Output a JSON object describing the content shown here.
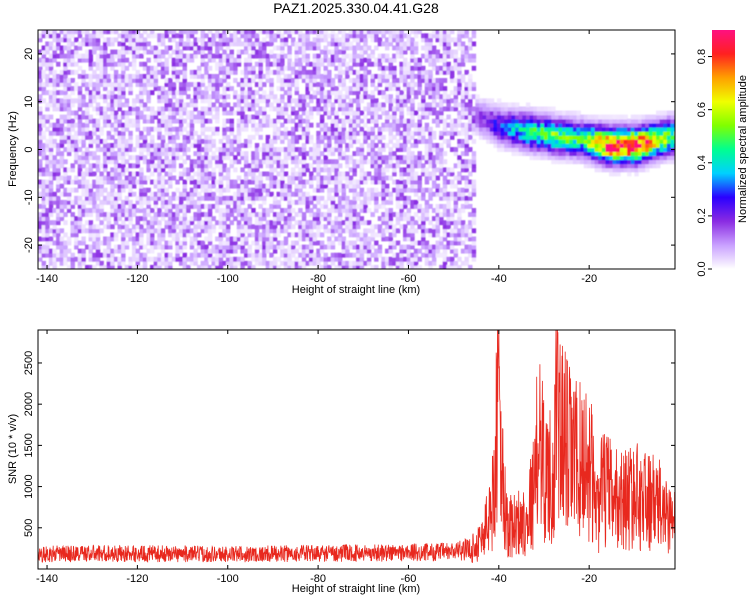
{
  "chart_data": [
    {
      "type": "heatmap",
      "title": "PAZ1.2025.330.04.41.G28",
      "xlabel": "Height of straight line (km)",
      "ylabel": "Frequency (Hz)",
      "xlim": [
        -142,
        -1
      ],
      "ylim": [
        -25,
        25
      ],
      "xticks": [
        -140,
        -120,
        -100,
        -80,
        -60,
        -40,
        -20
      ],
      "yticks": [
        -20,
        -10,
        0,
        10,
        20
      ],
      "colorbar": {
        "label": "Normalized spectral amplitude",
        "range": [
          0,
          0.9
        ],
        "ticks": [
          0.0,
          0.2,
          0.4,
          0.6,
          0.8
        ],
        "colormap": "purple-blue-cyan-green-yellow-red-pink"
      },
      "noise_region": {
        "x_range": [
          -142,
          -46
        ],
        "freq_range": [
          -25,
          25
        ],
        "amplitude_range": [
          0.02,
          0.12
        ]
      },
      "signal_ridge": {
        "points": [
          {
            "x": -46,
            "freq": 7,
            "amp": 0.12
          },
          {
            "x": -40,
            "freq": 4.5,
            "amp": 0.28
          },
          {
            "x": -34,
            "freq": 3.5,
            "amp": 0.45
          },
          {
            "x": -28,
            "freq": 2.5,
            "amp": 0.5
          },
          {
            "x": -22,
            "freq": 1.8,
            "amp": 0.45
          },
          {
            "x": -16,
            "freq": 0.5,
            "amp": 0.85
          },
          {
            "x": -10,
            "freq": 0.5,
            "amp": 0.9
          },
          {
            "x": -4,
            "freq": 2,
            "amp": 0.55
          },
          {
            "x": -1,
            "freq": 2.5,
            "amp": 0.5
          }
        ]
      }
    },
    {
      "type": "line",
      "xlabel": "Height of straight line (km)",
      "ylabel": "SNR (10 * v/v)",
      "xlim": [
        -142,
        -1
      ],
      "ylim": [
        0,
        2900
      ],
      "xticks": [
        -140,
        -120,
        -100,
        -80,
        -60,
        -40,
        -20
      ],
      "yticks": [
        500,
        1000,
        1500,
        2000,
        2500
      ],
      "line_color": "#e8281e",
      "series": [
        {
          "name": "SNR",
          "x": [
            -142,
            -130,
            -120,
            -110,
            -100,
            -90,
            -80,
            -70,
            -60,
            -50,
            -46,
            -44,
            -42,
            -41,
            -40,
            -39.5,
            -38,
            -36,
            -34,
            -32,
            -31,
            -30,
            -28,
            -27,
            -26,
            -24,
            -22,
            -20,
            -18,
            -17,
            -14,
            -12,
            -10,
            -8,
            -6,
            -4,
            -2,
            -1
          ],
          "y": [
            180,
            190,
            185,
            185,
            180,
            185,
            190,
            195,
            200,
            210,
            250,
            350,
            650,
            950,
            2850,
            1200,
            500,
            550,
            600,
            1000,
            1900,
            1200,
            1100,
            2000,
            1600,
            1400,
            1300,
            1300,
            700,
            1000,
            850,
            850,
            900,
            850,
            800,
            750,
            600,
            700
          ]
        }
      ]
    }
  ]
}
